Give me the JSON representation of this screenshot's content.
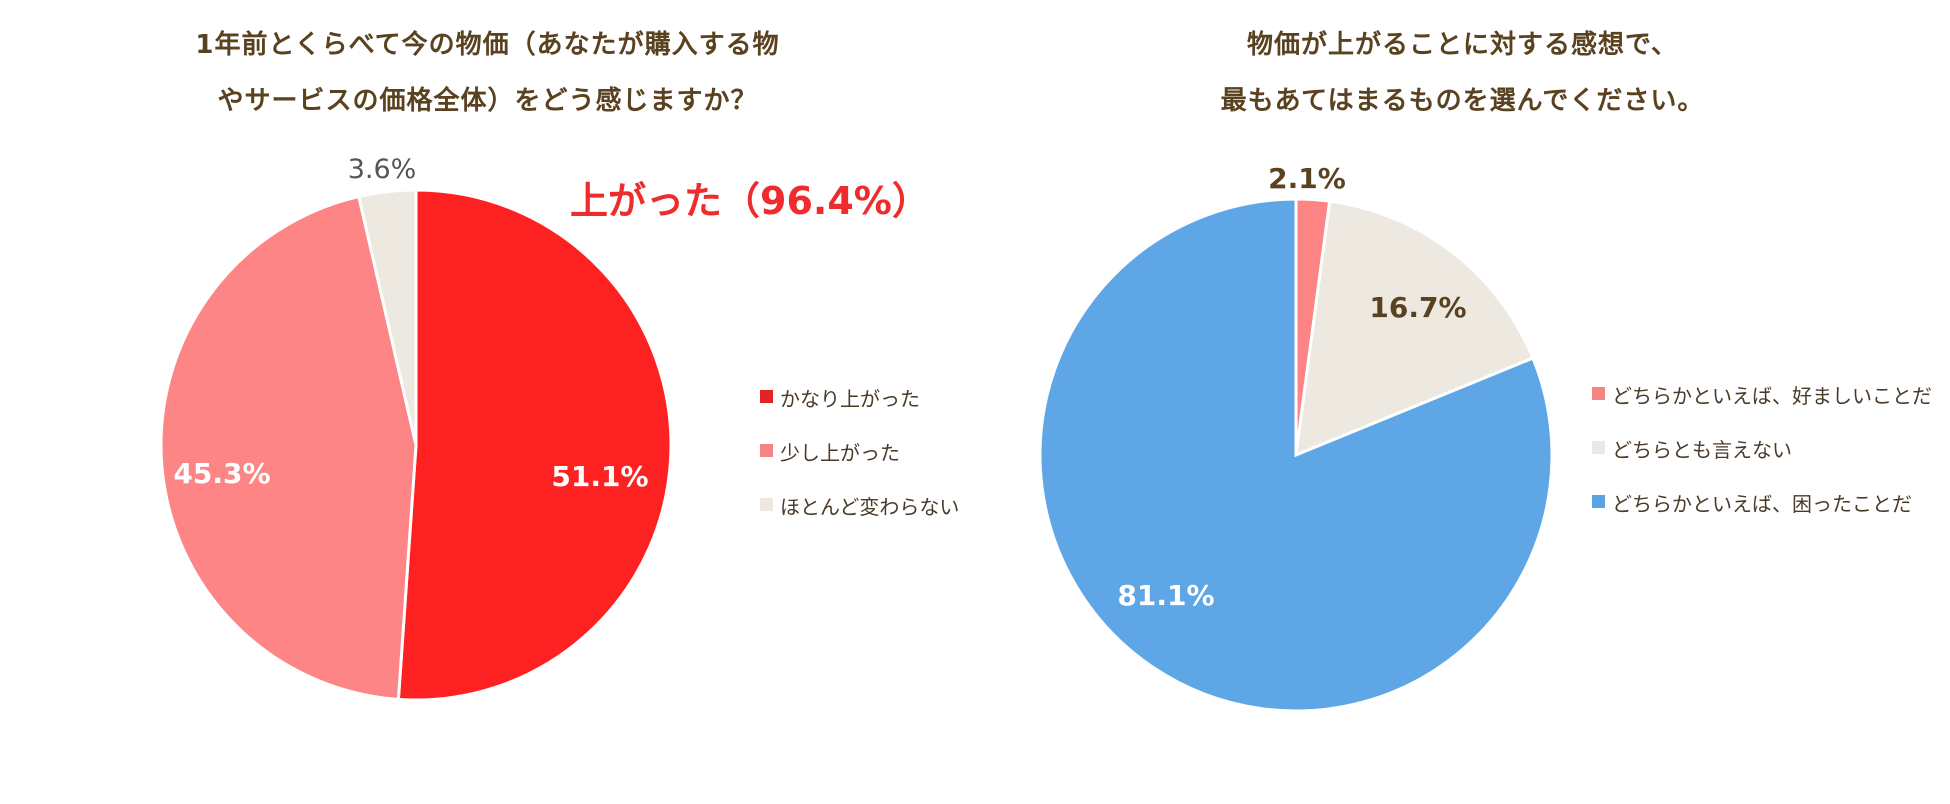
{
  "left": {
    "title_line1": "1年前とくらべて今の物価（あなたが購入する物",
    "title_line2": "やサービスの価格全体）をどう感じますか？",
    "highlight": "上がった（96.4%）",
    "legend": [
      {
        "label": "かなり上がった",
        "color": "#e02428"
      },
      {
        "label": "少し上がった",
        "color": "#f48484"
      },
      {
        "label": "ほとんど変わらない",
        "color": "#ede8e0"
      }
    ]
  },
  "right": {
    "title_line1": "物価が上がることに対する感想で、",
    "title_line2": "最もあてはまるものを選んでください。",
    "legend": [
      {
        "label": "どちらかといえば、好ましいことだ",
        "color": "#f48484"
      },
      {
        "label": "どちらとも言えない",
        "color": "#ede8e0"
      },
      {
        "label": "どちらかといえば、困ったことだ",
        "color": "#5aa4e4"
      }
    ]
  },
  "chart_data": [
    {
      "type": "pie",
      "title": "1年前とくらべて今の物価（あなたが購入する物やサービスの価格全体）をどう感じますか？",
      "slices": [
        {
          "label": "かなり上がった",
          "value": 51.1,
          "display": "51.1%",
          "color": "#fe2121",
          "text_color": "#ffffff"
        },
        {
          "label": "少し上がった",
          "value": 45.3,
          "display": "45.3%",
          "color": "#fd8585",
          "text_color": "#ffffff"
        },
        {
          "label": "ほとんど変わらない",
          "value": 3.6,
          "display": "3.6%",
          "color": "#ede8e0",
          "text_color": "#555555"
        }
      ],
      "legend_position": "right"
    },
    {
      "type": "pie",
      "title": "物価が上がることに対する感想で、最もあてはまるものを選んでください。",
      "slices": [
        {
          "label": "どちらかといえば、好ましいことだ",
          "value": 2.1,
          "display": "2.1%",
          "color": "#fd8585",
          "text_color": "#5a4220"
        },
        {
          "label": "どちらとも言えない",
          "value": 16.7,
          "display": "16.7%",
          "color": "#ede8e0",
          "text_color": "#5a4220"
        },
        {
          "label": "どちらかといえば、困ったことだ",
          "value": 81.1,
          "display": "81.1%",
          "color": "#5fa6e6",
          "text_color": "#ffffff"
        }
      ],
      "legend_position": "right"
    }
  ]
}
